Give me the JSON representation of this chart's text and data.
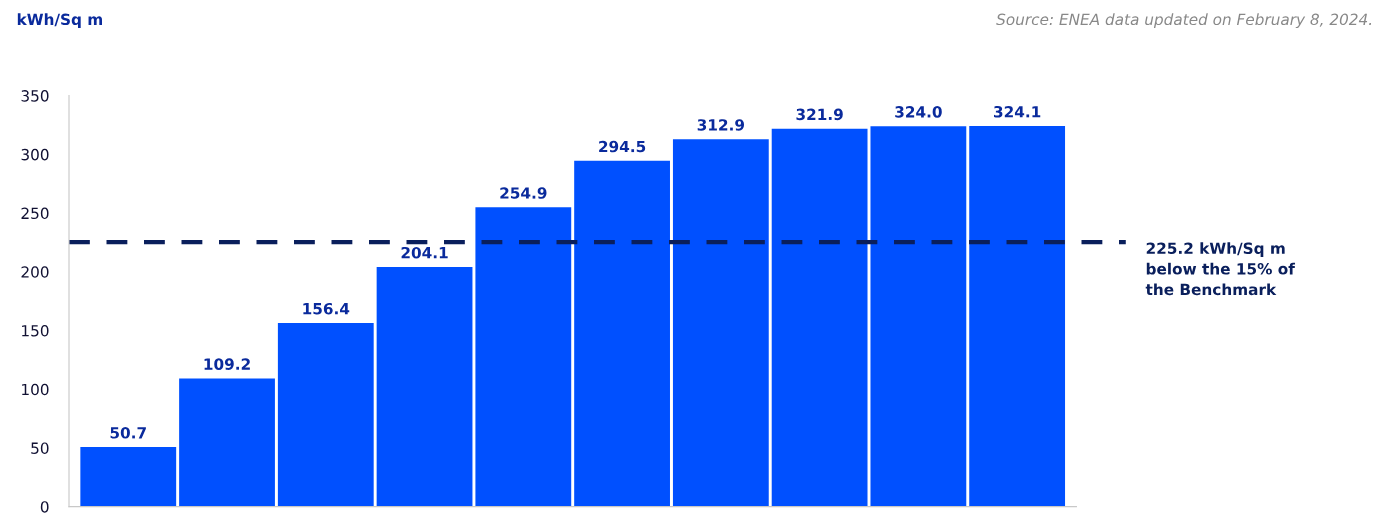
{
  "chart_data": {
    "type": "bar",
    "ylabel": "kWh/Sq m",
    "annotations": [
      "Source: ENEA data updated on February 8, 2024."
    ],
    "categories": [
      null,
      null,
      null,
      null,
      null,
      null,
      null,
      null,
      null,
      null
    ],
    "values": [
      50.7,
      109.2,
      156.4,
      204.1,
      254.9,
      294.5,
      312.9,
      321.9,
      324.0,
      324.1
    ],
    "value_labels": [
      "50.7",
      "109.2",
      "156.4",
      "204.1",
      "254.9",
      "294.5",
      "312.9",
      "321.9",
      "324.0",
      "324.1"
    ],
    "color": "#0050ff",
    "ylim": [
      0,
      350
    ],
    "yticks": [
      0,
      50,
      100,
      150,
      200,
      250,
      300,
      350
    ],
    "grid": false,
    "legend": false,
    "ref_lines": [
      {
        "axis": "y",
        "value": 225.2,
        "label": "225.2 kWh/Sq m\nbelow the 15% of\nthe Benchmark",
        "color": "#0a1f5c",
        "line_style": "dashed"
      }
    ]
  }
}
